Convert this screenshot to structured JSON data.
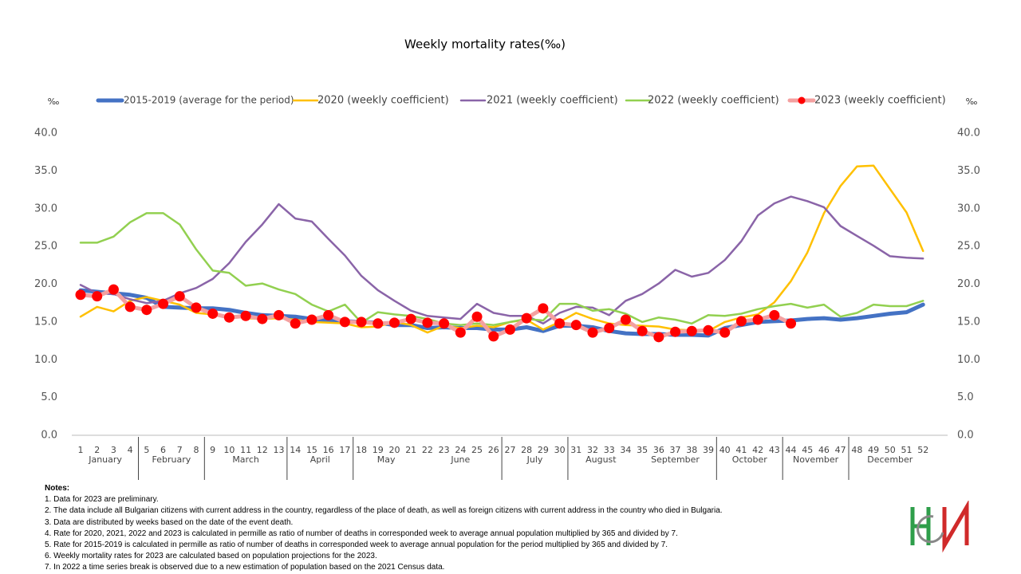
{
  "chart_data": {
    "type": "line",
    "title": "Weekly mortality rates(‰)",
    "y_axis_label": "‰",
    "y2_axis_label": "‰",
    "categories": [
      "1",
      "2",
      "3",
      "4",
      "5",
      "6",
      "7",
      "8",
      "9",
      "10",
      "11",
      "12",
      "13",
      "14",
      "15",
      "16",
      "17",
      "18",
      "19",
      "20",
      "21",
      "22",
      "23",
      "24",
      "25",
      "26",
      "27",
      "28",
      "29",
      "30",
      "31",
      "32",
      "33",
      "34",
      "35",
      "36",
      "37",
      "38",
      "39",
      "40",
      "41",
      "42",
      "43",
      "44",
      "45",
      "46",
      "47",
      "48",
      "49",
      "50",
      "51",
      "52"
    ],
    "months": [
      "January",
      "February",
      "March",
      "April",
      "May",
      "June",
      "July",
      "August",
      "September",
      "October",
      "November",
      "December"
    ],
    "ylim": [
      0,
      40
    ],
    "yticks": [
      {
        "value": 0,
        "label": "0.0"
      },
      {
        "value": 5,
        "label": "5.0"
      },
      {
        "value": 10,
        "label": "10.0"
      },
      {
        "value": 15,
        "label": "15.0"
      },
      {
        "value": 20,
        "label": "20.0"
      },
      {
        "value": 25,
        "label": "25.0"
      },
      {
        "value": 30,
        "label": "30.0"
      },
      {
        "value": 35,
        "label": "35.0"
      },
      {
        "value": 40,
        "label": "40.0"
      }
    ],
    "y2lim": [
      0,
      40
    ],
    "y2ticks": [
      {
        "value": 0,
        "label": "0.0"
      },
      {
        "value": 5,
        "label": "5.0"
      },
      {
        "value": 10,
        "label": "10.0"
      },
      {
        "value": 15,
        "label": "15.0"
      },
      {
        "value": 20,
        "label": "20.0"
      },
      {
        "value": 25,
        "label": "25.0"
      },
      {
        "value": 30,
        "label": "30.0"
      },
      {
        "value": 35,
        "label": "35.0"
      },
      {
        "value": 40,
        "label": "40.0"
      }
    ],
    "grid": false,
    "legend": "top",
    "series": [
      {
        "name": "2015-2019 (average for the period)",
        "color": "#4472c4",
        "width": 5,
        "values": [
          19.2,
          19.0,
          18.8,
          18.6,
          18.2,
          17.0,
          16.9,
          16.8,
          16.8,
          16.6,
          16.2,
          15.9,
          15.8,
          15.7,
          15.4,
          15.2,
          15.1,
          15.0,
          14.9,
          14.6,
          14.6,
          14.2,
          14.3,
          14.2,
          14.2,
          14.0,
          14.0,
          14.3,
          13.8,
          14.5,
          14.5,
          14.3,
          13.8,
          13.5,
          13.4,
          13.4,
          13.3,
          13.3,
          13.2,
          14.2,
          14.6,
          15.0,
          15.1,
          15.2,
          15.4,
          15.5,
          15.3,
          15.5,
          15.8,
          16.1,
          16.3,
          17.3
        ]
      },
      {
        "name": "2020 (weekly coefficient)",
        "color": "#ffc000",
        "width": 2.5,
        "values": [
          15.7,
          17.0,
          16.4,
          17.8,
          18.3,
          17.8,
          17.3,
          16.2,
          16.0,
          15.8,
          15.5,
          15.4,
          15.5,
          15.3,
          15.0,
          14.9,
          14.8,
          14.3,
          14.4,
          15.0,
          14.6,
          13.6,
          14.5,
          14.2,
          14.5,
          14.3,
          15.0,
          15.3,
          14.0,
          15.0,
          16.2,
          15.4,
          14.8,
          14.6,
          14.5,
          14.4,
          14.0,
          13.9,
          13.8,
          15.0,
          15.6,
          16.0,
          17.6,
          20.4,
          24.2,
          29.4,
          33.0,
          35.6,
          35.7,
          32.6,
          29.5,
          24.4
        ]
      },
      {
        "name": "2021 (weekly coefficient)",
        "color": "#8a64a8",
        "width": 2.5,
        "values": [
          19.9,
          18.8,
          18.7,
          18.0,
          17.5,
          17.8,
          18.8,
          19.5,
          20.7,
          22.8,
          25.6,
          27.9,
          30.6,
          28.7,
          28.3,
          26.0,
          23.8,
          21.1,
          19.2,
          17.8,
          16.5,
          15.8,
          15.6,
          15.4,
          17.4,
          16.2,
          15.8,
          15.8,
          14.8,
          16.2,
          17.0,
          16.9,
          15.9,
          17.8,
          18.7,
          20.1,
          21.9,
          21.0,
          21.5,
          23.2,
          25.7,
          29.1,
          30.7,
          31.6,
          31.0,
          30.2,
          27.7,
          26.4,
          25.1,
          23.7,
          23.5,
          23.4
        ]
      },
      {
        "name": "2022 (weekly coefficient)",
        "color": "#92d050",
        "width": 2.5,
        "values": [
          25.5,
          25.5,
          26.3,
          28.2,
          29.4,
          29.4,
          27.9,
          24.6,
          21.8,
          21.5,
          19.8,
          20.1,
          19.3,
          18.7,
          17.3,
          16.4,
          17.3,
          14.9,
          16.3,
          16.0,
          15.8,
          15.4,
          14.8,
          14.6,
          14.8,
          14.6,
          15.0,
          15.4,
          15.2,
          17.4,
          17.4,
          16.5,
          16.7,
          16.1,
          15.0,
          15.6,
          15.3,
          14.8,
          15.9,
          15.8,
          16.1,
          16.7,
          17.1,
          17.4,
          16.9,
          17.3,
          15.7,
          16.2,
          17.3,
          17.1,
          17.1,
          17.8
        ]
      },
      {
        "name": "2023 (weekly coefficient)",
        "color": "#ff0000",
        "line_color": "#f4a0a0",
        "width": 5,
        "markers": true,
        "values": [
          18.6,
          18.4,
          19.3,
          17.0,
          16.6,
          17.4,
          18.4,
          16.9,
          16.1,
          15.6,
          15.8,
          15.4,
          15.9,
          14.8,
          15.3,
          15.9,
          15.0,
          15.0,
          14.8,
          14.9,
          15.4,
          14.9,
          14.8,
          13.6,
          15.7,
          13.1,
          14.0,
          15.5,
          16.8,
          14.8,
          14.6,
          13.6,
          14.2,
          15.3,
          13.8,
          13.0,
          13.7,
          13.8,
          13.9,
          13.6,
          15.1,
          15.3,
          15.9,
          14.8,
          null,
          null,
          null,
          null,
          null,
          null,
          null,
          null
        ]
      }
    ]
  },
  "notes": {
    "title": "Notes:",
    "items": [
      "1. Data for 2023 are preliminary.",
      "2. The data include all Bulgarian citizens with current address in the country, regardless of the place of death, as well as foreign citizens with current address in the country who died in Bulgaria.",
      "3. Data are distributed by weeks based on the date of the event death.",
      "4. Rate for 2020, 2021, 2022 and 2023 is calculated in permille as ratio of number of deaths in corresponded week to average annual population multiplied by 365 and divided by 7.",
      "5. Rate for 2015-2019 is calculated in permille as ratio of number of deaths in corresponded week to average annual population for the period multiplied by 365 and divided by 7.",
      "6. Weekly mortality rates for 2023 are calculated based on population projections for the 2023.",
      "7. In 2022 a time series break is observed due to a new estimation of population based on the 2021 Census data."
    ]
  }
}
